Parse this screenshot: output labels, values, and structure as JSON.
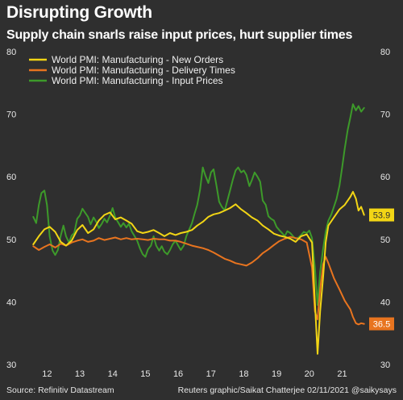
{
  "header": {
    "title": "Disrupting Growth",
    "subtitle": "Supply chain snarls raise input prices, hurt supplier times"
  },
  "footer": {
    "source": "Source: Refinitiv Datastream",
    "credit": "Reuters graphic/Saikat Chatterjee 02/11/2021 @saikysays"
  },
  "chart_data": {
    "type": "line",
    "title": "Disrupting Growth",
    "subtitle": "Supply chain snarls raise input prices, hurt supplier times",
    "xlabel": "",
    "ylabel": "",
    "ylim": [
      30,
      80
    ],
    "yticks": [
      30,
      40,
      50,
      60,
      70,
      80
    ],
    "xlim": [
      2011.5,
      2021.75
    ],
    "xticks": [
      2012,
      2013,
      2014,
      2015,
      2016,
      2017,
      2018,
      2019,
      2020,
      2021
    ],
    "xtick_labels": [
      "12",
      "13",
      "14",
      "15",
      "16",
      "17",
      "18",
      "19",
      "20",
      "21"
    ],
    "grid": false,
    "legend_position": "top-left",
    "series": [
      {
        "name": "World PMI: Manufacturing - New Orders",
        "color": "#f2d515",
        "end_label": "53.9",
        "points": [
          [
            2011.58,
            49.2
          ],
          [
            2011.75,
            50.5
          ],
          [
            2011.92,
            51.6
          ],
          [
            2012.08,
            52.0
          ],
          [
            2012.25,
            51.2
          ],
          [
            2012.42,
            49.6
          ],
          [
            2012.58,
            49.0
          ],
          [
            2012.75,
            49.8
          ],
          [
            2012.92,
            51.5
          ],
          [
            2013.08,
            52.3
          ],
          [
            2013.25,
            51.0
          ],
          [
            2013.42,
            51.6
          ],
          [
            2013.58,
            53.0
          ],
          [
            2013.75,
            53.9
          ],
          [
            2013.92,
            54.3
          ],
          [
            2014.08,
            53.2
          ],
          [
            2014.25,
            53.5
          ],
          [
            2014.42,
            53.0
          ],
          [
            2014.58,
            52.5
          ],
          [
            2014.75,
            51.3
          ],
          [
            2014.92,
            51.0
          ],
          [
            2015.08,
            51.2
          ],
          [
            2015.25,
            51.5
          ],
          [
            2015.42,
            51.0
          ],
          [
            2015.58,
            50.5
          ],
          [
            2015.75,
            51.0
          ],
          [
            2015.92,
            50.7
          ],
          [
            2016.08,
            51.0
          ],
          [
            2016.25,
            51.2
          ],
          [
            2016.42,
            51.5
          ],
          [
            2016.58,
            52.2
          ],
          [
            2016.75,
            52.8
          ],
          [
            2016.92,
            53.6
          ],
          [
            2017.08,
            54.0
          ],
          [
            2017.25,
            54.2
          ],
          [
            2017.42,
            54.6
          ],
          [
            2017.58,
            55.0
          ],
          [
            2017.75,
            55.6
          ],
          [
            2017.92,
            54.8
          ],
          [
            2018.08,
            54.2
          ],
          [
            2018.25,
            53.5
          ],
          [
            2018.42,
            53.0
          ],
          [
            2018.58,
            52.2
          ],
          [
            2018.75,
            51.6
          ],
          [
            2018.92,
            50.9
          ],
          [
            2019.08,
            50.6
          ],
          [
            2019.25,
            50.4
          ],
          [
            2019.42,
            50.1
          ],
          [
            2019.58,
            49.6
          ],
          [
            2019.75,
            50.5
          ],
          [
            2019.92,
            50.8
          ],
          [
            2020.08,
            49.5
          ],
          [
            2020.17,
            40.0
          ],
          [
            2020.25,
            31.7
          ],
          [
            2020.33,
            38.5
          ],
          [
            2020.42,
            44.0
          ],
          [
            2020.5,
            49.5
          ],
          [
            2020.58,
            52.2
          ],
          [
            2020.75,
            53.5
          ],
          [
            2020.92,
            54.8
          ],
          [
            2021.08,
            55.5
          ],
          [
            2021.25,
            56.8
          ],
          [
            2021.33,
            57.6
          ],
          [
            2021.42,
            56.5
          ],
          [
            2021.5,
            54.6
          ],
          [
            2021.58,
            55.2
          ],
          [
            2021.67,
            53.9
          ]
        ]
      },
      {
        "name": "World PMI: Manufacturing - Delivery Times",
        "color": "#e8741f",
        "end_label": "36.5",
        "points": [
          [
            2011.58,
            48.9
          ],
          [
            2011.75,
            48.3
          ],
          [
            2011.92,
            48.8
          ],
          [
            2012.08,
            49.2
          ],
          [
            2012.25,
            48.7
          ],
          [
            2012.42,
            49.3
          ],
          [
            2012.58,
            49.0
          ],
          [
            2012.75,
            49.5
          ],
          [
            2012.92,
            49.8
          ],
          [
            2013.08,
            50.0
          ],
          [
            2013.25,
            49.6
          ],
          [
            2013.42,
            49.8
          ],
          [
            2013.58,
            50.2
          ],
          [
            2013.75,
            49.9
          ],
          [
            2013.92,
            50.1
          ],
          [
            2014.08,
            50.3
          ],
          [
            2014.25,
            50.0
          ],
          [
            2014.42,
            50.2
          ],
          [
            2014.58,
            50.0
          ],
          [
            2014.75,
            50.1
          ],
          [
            2014.92,
            50.0
          ],
          [
            2015.08,
            49.9
          ],
          [
            2015.25,
            50.1
          ],
          [
            2015.42,
            50.0
          ],
          [
            2015.58,
            50.0
          ],
          [
            2015.75,
            49.8
          ],
          [
            2015.92,
            49.8
          ],
          [
            2016.08,
            49.6
          ],
          [
            2016.25,
            49.3
          ],
          [
            2016.42,
            49.0
          ],
          [
            2016.58,
            48.8
          ],
          [
            2016.75,
            48.6
          ],
          [
            2016.92,
            48.3
          ],
          [
            2017.08,
            47.9
          ],
          [
            2017.25,
            47.4
          ],
          [
            2017.42,
            46.9
          ],
          [
            2017.58,
            46.6
          ],
          [
            2017.75,
            46.2
          ],
          [
            2017.92,
            46.0
          ],
          [
            2018.08,
            45.8
          ],
          [
            2018.25,
            46.3
          ],
          [
            2018.42,
            47.0
          ],
          [
            2018.58,
            47.8
          ],
          [
            2018.75,
            48.4
          ],
          [
            2018.92,
            49.1
          ],
          [
            2019.08,
            49.7
          ],
          [
            2019.25,
            50.1
          ],
          [
            2019.42,
            50.4
          ],
          [
            2019.58,
            50.2
          ],
          [
            2019.75,
            50.0
          ],
          [
            2019.92,
            49.5
          ],
          [
            2020.08,
            45.5
          ],
          [
            2020.17,
            38.5
          ],
          [
            2020.25,
            37.2
          ],
          [
            2020.33,
            42.0
          ],
          [
            2020.42,
            46.0
          ],
          [
            2020.5,
            47.2
          ],
          [
            2020.58,
            46.2
          ],
          [
            2020.75,
            43.8
          ],
          [
            2020.92,
            42.0
          ],
          [
            2021.08,
            40.2
          ],
          [
            2021.25,
            38.8
          ],
          [
            2021.33,
            37.6
          ],
          [
            2021.42,
            36.6
          ],
          [
            2021.5,
            36.4
          ],
          [
            2021.58,
            36.6
          ],
          [
            2021.67,
            36.5
          ]
        ]
      },
      {
        "name": "World PMI: Manufacturing - Input Prices",
        "color": "#3d9a2a",
        "points": [
          [
            2011.58,
            53.6
          ],
          [
            2011.67,
            52.6
          ],
          [
            2011.75,
            55.5
          ],
          [
            2011.83,
            57.4
          ],
          [
            2011.92,
            57.8
          ],
          [
            2012.0,
            55.5
          ],
          [
            2012.08,
            50.5
          ],
          [
            2012.17,
            48.2
          ],
          [
            2012.25,
            47.5
          ],
          [
            2012.33,
            48.3
          ],
          [
            2012.42,
            50.6
          ],
          [
            2012.5,
            52.2
          ],
          [
            2012.58,
            50.5
          ],
          [
            2012.67,
            49.5
          ],
          [
            2012.75,
            50.6
          ],
          [
            2012.83,
            51.0
          ],
          [
            2012.92,
            53.3
          ],
          [
            2013.0,
            53.8
          ],
          [
            2013.08,
            54.9
          ],
          [
            2013.17,
            54.2
          ],
          [
            2013.25,
            53.6
          ],
          [
            2013.33,
            52.4
          ],
          [
            2013.42,
            53.5
          ],
          [
            2013.5,
            52.8
          ],
          [
            2013.58,
            51.8
          ],
          [
            2013.67,
            52.5
          ],
          [
            2013.75,
            53.3
          ],
          [
            2013.83,
            52.7
          ],
          [
            2013.92,
            53.8
          ],
          [
            2014.0,
            55.0
          ],
          [
            2014.08,
            53.5
          ],
          [
            2014.17,
            52.7
          ],
          [
            2014.25,
            52.0
          ],
          [
            2014.33,
            52.6
          ],
          [
            2014.42,
            51.9
          ],
          [
            2014.5,
            52.5
          ],
          [
            2014.58,
            51.3
          ],
          [
            2014.67,
            50.5
          ],
          [
            2014.75,
            49.8
          ],
          [
            2014.83,
            48.6
          ],
          [
            2014.92,
            47.6
          ],
          [
            2015.0,
            47.2
          ],
          [
            2015.08,
            48.4
          ],
          [
            2015.17,
            49.0
          ],
          [
            2015.25,
            50.5
          ],
          [
            2015.33,
            49.0
          ],
          [
            2015.42,
            48.2
          ],
          [
            2015.5,
            48.9
          ],
          [
            2015.58,
            48.0
          ],
          [
            2015.67,
            47.6
          ],
          [
            2015.75,
            48.3
          ],
          [
            2015.83,
            49.2
          ],
          [
            2015.92,
            49.8
          ],
          [
            2016.0,
            49.0
          ],
          [
            2016.08,
            48.3
          ],
          [
            2016.17,
            49.0
          ],
          [
            2016.25,
            50.5
          ],
          [
            2016.33,
            51.5
          ],
          [
            2016.42,
            52.6
          ],
          [
            2016.5,
            54.1
          ],
          [
            2016.58,
            55.5
          ],
          [
            2016.67,
            58.0
          ],
          [
            2016.75,
            61.5
          ],
          [
            2016.83,
            60.2
          ],
          [
            2016.92,
            59.0
          ],
          [
            2017.0,
            60.7
          ],
          [
            2017.08,
            61.2
          ],
          [
            2017.17,
            58.5
          ],
          [
            2017.25,
            56.0
          ],
          [
            2017.33,
            55.2
          ],
          [
            2017.42,
            54.6
          ],
          [
            2017.5,
            56.2
          ],
          [
            2017.58,
            57.8
          ],
          [
            2017.67,
            59.6
          ],
          [
            2017.75,
            61.0
          ],
          [
            2017.83,
            61.5
          ],
          [
            2017.92,
            60.7
          ],
          [
            2018.0,
            61.0
          ],
          [
            2018.08,
            60.3
          ],
          [
            2018.17,
            58.5
          ],
          [
            2018.25,
            59.5
          ],
          [
            2018.33,
            60.7
          ],
          [
            2018.42,
            60.0
          ],
          [
            2018.5,
            59.2
          ],
          [
            2018.58,
            56.2
          ],
          [
            2018.67,
            55.5
          ],
          [
            2018.75,
            53.7
          ],
          [
            2018.83,
            53.3
          ],
          [
            2018.92,
            53.0
          ],
          [
            2019.0,
            52.0
          ],
          [
            2019.08,
            51.5
          ],
          [
            2019.17,
            51.0
          ],
          [
            2019.25,
            50.5
          ],
          [
            2019.33,
            51.3
          ],
          [
            2019.42,
            51.0
          ],
          [
            2019.5,
            50.5
          ],
          [
            2019.58,
            50.1
          ],
          [
            2019.67,
            50.3
          ],
          [
            2019.75,
            50.7
          ],
          [
            2019.83,
            51.2
          ],
          [
            2019.92,
            51.0
          ],
          [
            2020.0,
            51.4
          ],
          [
            2020.08,
            50.2
          ],
          [
            2020.17,
            45.5
          ],
          [
            2020.25,
            39.5
          ],
          [
            2020.33,
            44.8
          ],
          [
            2020.42,
            48.5
          ],
          [
            2020.5,
            51.2
          ],
          [
            2020.58,
            53.0
          ],
          [
            2020.67,
            54.0
          ],
          [
            2020.75,
            55.2
          ],
          [
            2020.83,
            56.5
          ],
          [
            2020.92,
            58.6
          ],
          [
            2021.0,
            61.5
          ],
          [
            2021.08,
            64.5
          ],
          [
            2021.17,
            67.5
          ],
          [
            2021.25,
            69.5
          ],
          [
            2021.33,
            71.6
          ],
          [
            2021.42,
            70.6
          ],
          [
            2021.5,
            71.3
          ],
          [
            2021.58,
            70.4
          ],
          [
            2021.67,
            71.0
          ]
        ]
      }
    ]
  }
}
